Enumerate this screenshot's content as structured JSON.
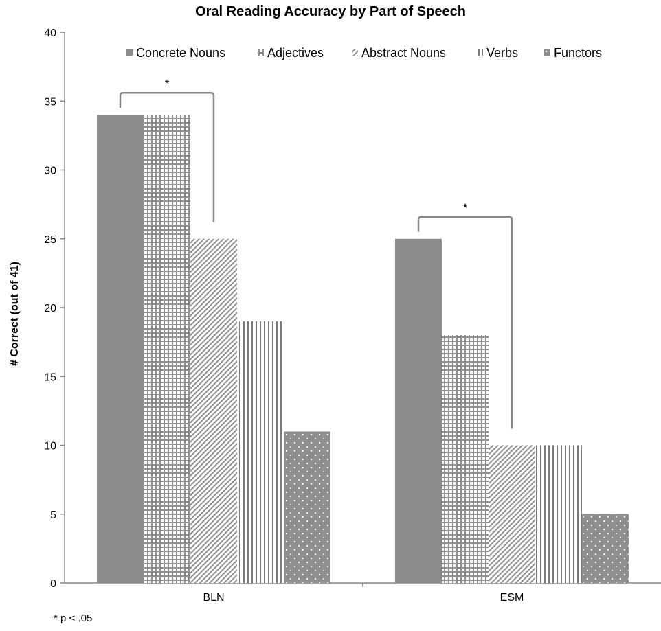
{
  "chart_data": {
    "type": "bar",
    "title": "Oral Reading Accuracy by Part of Speech",
    "xlabel": "",
    "ylabel": "# Correct (out of 41)",
    "ylim": [
      0,
      40
    ],
    "yticks": [
      0,
      5,
      10,
      15,
      20,
      25,
      30,
      35,
      40
    ],
    "categories": [
      "BLN",
      "ESM"
    ],
    "series": [
      {
        "name": "Concrete Nouns",
        "values": [
          34,
          25
        ],
        "pattern": "solid",
        "color": "#8c8c8c"
      },
      {
        "name": "Adjectives",
        "values": [
          34,
          18
        ],
        "pattern": "grid",
        "color": "#8c8c8c"
      },
      {
        "name": "Abstract Nouns",
        "values": [
          25,
          10
        ],
        "pattern": "diagonal",
        "color": "#8c8c8c"
      },
      {
        "name": "Verbs",
        "values": [
          19,
          10
        ],
        "pattern": "vertical",
        "color": "#8c8c8c"
      },
      {
        "name": "Functors",
        "values": [
          11,
          5
        ],
        "pattern": "dots",
        "color": "#8c8c8c"
      }
    ],
    "legend_position": "top",
    "grid": false,
    "annotations": [
      {
        "text": "*",
        "category": "BLN",
        "from_series": "Concrete Nouns",
        "to_series": "Abstract Nouns"
      },
      {
        "text": "*",
        "category": "ESM",
        "from_series": "Concrete Nouns",
        "to_series": "Abstract Nouns"
      }
    ],
    "footnote": "* p < .05"
  }
}
